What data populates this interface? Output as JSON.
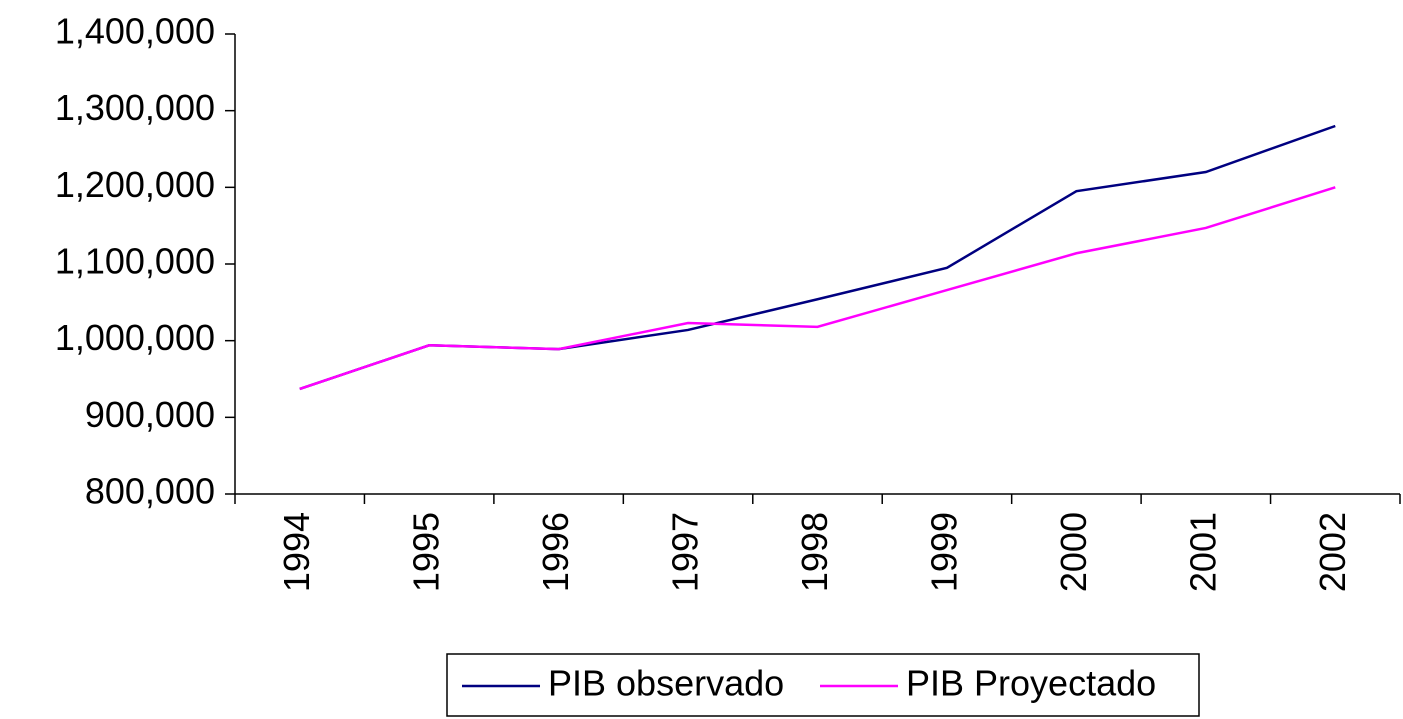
{
  "chart_data": {
    "type": "line",
    "categories": [
      "1994",
      "1995",
      "1996",
      "1997",
      "1998",
      "1999",
      "2000",
      "2001",
      "2002"
    ],
    "series": [
      {
        "name": "PIB observado",
        "color": "#000080",
        "values": [
          937000,
          994000,
          989000,
          1014000,
          1054000,
          1095000,
          1195000,
          1220000,
          1280000
        ]
      },
      {
        "name": "PIB Proyectado",
        "color": "#ff00ff",
        "values": [
          937000,
          994000,
          989000,
          1023000,
          1018000,
          1066000,
          1114000,
          1147000,
          1200000
        ]
      }
    ],
    "ylim": [
      800000,
      1400000
    ],
    "yticks": [
      {
        "value": 800000,
        "label": "800,000"
      },
      {
        "value": 900000,
        "label": "900,000"
      },
      {
        "value": 1000000,
        "label": "1,000,000"
      },
      {
        "value": 1100000,
        "label": "1,100,000"
      },
      {
        "value": 1200000,
        "label": "1,200,000"
      },
      {
        "value": 1300000,
        "label": "1,300,000"
      },
      {
        "value": 1400000,
        "label": "1,400,000"
      }
    ],
    "grid": false
  }
}
